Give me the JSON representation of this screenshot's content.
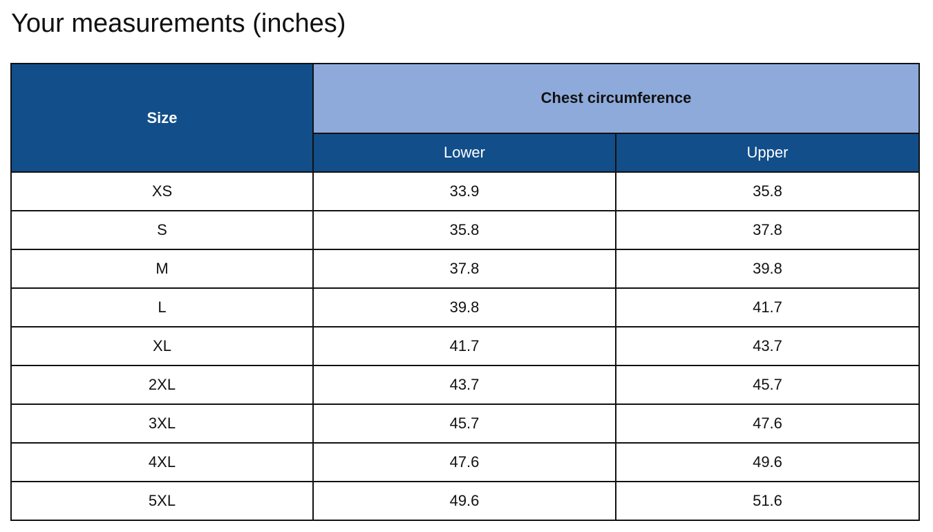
{
  "title": "Your measurements (inches)",
  "table": {
    "size_header": "Size",
    "group_header": "Chest circumference",
    "lower_header": "Lower",
    "upper_header": "Upper",
    "rows": [
      {
        "size": "XS",
        "lower": "33.9",
        "upper": "35.8"
      },
      {
        "size": "S",
        "lower": "35.8",
        "upper": "37.8"
      },
      {
        "size": "M",
        "lower": "37.8",
        "upper": "39.8"
      },
      {
        "size": "L",
        "lower": "39.8",
        "upper": "41.7"
      },
      {
        "size": "XL",
        "lower": "41.7",
        "upper": "43.7"
      },
      {
        "size": "2XL",
        "lower": "43.7",
        "upper": "45.7"
      },
      {
        "size": "3XL",
        "lower": "45.7",
        "upper": "47.6"
      },
      {
        "size": "4XL",
        "lower": "47.6",
        "upper": "49.6"
      },
      {
        "size": "5XL",
        "lower": "49.6",
        "upper": "51.6"
      }
    ]
  },
  "colors": {
    "header_dark_blue": "#124e8a",
    "header_light_blue": "#8eaadb",
    "border": "#111111"
  }
}
